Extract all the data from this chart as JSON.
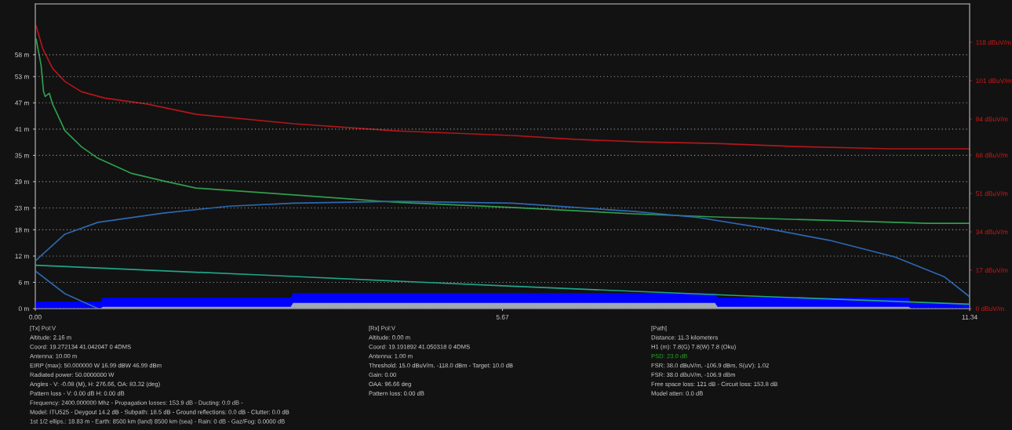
{
  "chart_data": [
    {
      "type": "line",
      "grid": "y",
      "line_style": "solid",
      "xlim": [
        0,
        11.34
      ],
      "xticks": [
        {
          "value": 0,
          "label": "0.00"
        },
        {
          "value": 5.67,
          "label": "5.67"
        },
        {
          "value": 11.34,
          "label": "11.34"
        }
      ],
      "ylim": [
        0,
        69.6
      ],
      "yticks": [
        {
          "value": 0,
          "label": "0 m"
        },
        {
          "value": 6,
          "label": "6 m"
        },
        {
          "value": 12,
          "label": "12 m"
        },
        {
          "value": 18,
          "label": "18 m"
        },
        {
          "value": 23,
          "label": "23 m"
        },
        {
          "value": 29,
          "label": "29 m"
        },
        {
          "value": 35,
          "label": "35 m"
        },
        {
          "value": 41,
          "label": "41 m"
        },
        {
          "value": 47,
          "label": "47 m"
        },
        {
          "value": 53,
          "label": "53 m"
        },
        {
          "value": 58,
          "label": "58 m"
        }
      ],
      "y2lim": [
        0,
        135
      ],
      "y2ticks": [
        {
          "value": 0,
          "label": "0 dBuV/m"
        },
        {
          "value": 17,
          "label": "17 dBuV/m"
        },
        {
          "value": 34,
          "label": "34 dBuV/m"
        },
        {
          "value": 51,
          "label": "51 dBuV/m"
        },
        {
          "value": 68,
          "label": "68 dBuV/m"
        },
        {
          "value": 84,
          "label": "84 dBuV/m"
        },
        {
          "value": 101,
          "label": "101 dBuV/m"
        },
        {
          "value": 118,
          "label": "118 dBuV/m"
        }
      ],
      "series": [
        {
          "type": "area",
          "color": "#0000ff",
          "x": [
            0,
            0.79,
            0.82,
            3.1,
            3.13,
            8.25,
            8.28,
            10.6,
            10.63,
            11.34
          ],
          "values": [
            1.6,
            1.6,
            2.5,
            2.5,
            3.6,
            3.6,
            2.5,
            2.5,
            1.2,
            1.2
          ]
        },
        {
          "type": "area",
          "color": "#9ea9b5",
          "x": [
            0,
            0.79,
            0.82,
            3.1,
            3.13,
            8.25,
            8.28,
            10.6,
            10.63,
            11.34
          ],
          "values": [
            0,
            0,
            0.4,
            0.4,
            1.3,
            1.3,
            0.4,
            0.4,
            0,
            0
          ]
        },
        {
          "type": "line",
          "color": "#1fa58a",
          "x": [
            0,
            2.83,
            5.67,
            8.5,
            11.34
          ],
          "values": [
            9.9,
            7.6,
            5.2,
            3.0,
            1.0
          ]
        },
        {
          "type": "line",
          "color": "#2d68b0",
          "x": [
            0,
            0.36,
            0.76,
            1.55,
            2.35,
            3.14,
            4.34,
            5.79,
            7.26,
            8.05,
            8.84,
            9.64,
            10.43,
            11.03,
            11.34
          ],
          "values": [
            10.9,
            17.0,
            19.7,
            21.8,
            23.4,
            24.1,
            24.5,
            24.1,
            22.2,
            20.8,
            18.4,
            15.6,
            11.8,
            7.3,
            2.7
          ]
        },
        {
          "type": "line",
          "color": "#2d68b0",
          "x": [
            0,
            0.36,
            0.76
          ],
          "values": [
            8.6,
            3.4,
            0
          ]
        },
        {
          "type": "line",
          "axis": "y2",
          "color": "#2e9e4e",
          "x": [
            0.01,
            0.07,
            0.1,
            0.12,
            0.17,
            0.21,
            0.36,
            0.56,
            0.76,
            1.16,
            1.55,
            1.95,
            2.74,
            3.54,
            4.34,
            5.79,
            7.26,
            8.25,
            9.8,
            10.83,
            11.34
          ],
          "values": [
            119.4,
            107.9,
            96.1,
            94.0,
            95.4,
            90.6,
            78.8,
            71.7,
            66.6,
            60.0,
            56.6,
            53.4,
            51.4,
            49.3,
            47.2,
            44.8,
            42.0,
            40.6,
            38.9,
            37.8,
            37.8
          ]
        },
        {
          "type": "line",
          "axis": "y2",
          "color": "#b3161b",
          "x": [
            0.01,
            0.09,
            0.21,
            0.36,
            0.56,
            0.84,
            1.36,
            1.95,
            3.14,
            4.34,
            5.79,
            6.55,
            7.34,
            8.25,
            9.24,
            10.4,
            11.34
          ],
          "values": [
            125.3,
            115.2,
            106.4,
            100.6,
            96.1,
            93.3,
            90.6,
            86.1,
            81.9,
            78.8,
            76.7,
            75.0,
            73.9,
            73.2,
            71.8,
            70.8,
            70.8
          ]
        }
      ]
    },
    {
      "type": "other",
      "annotations": [
        "[Tx] Pol:V",
        "Altitude: 2.16 m",
        "Coord: 19.272134 41.042047 0 4DMS",
        "Antenna: 10.00 m",
        "EIRP (max): 50.000000 W 16.99 dBW 46.99 dBm",
        "Radiated power: 50.0000000 W",
        "Angles - V: -0.08 (M), H: 276.66, OA: 83.32 (deg)",
        "Pattern loss - V: 0.00 dB H: 0.00 dB",
        "Frequency: 2400.000000 Mhz - Propagation losses: 153.9 dB - Ducting: 0.0 dB -",
        "Model: ITU525 - Deygout 14.2 dB - Subpath: 18.5 dB - Ground reflections: 0.0 dB - Clutter: 0.0 dB",
        "1st 1/2 ellips.: 18.83 m - Earth: 8500 km (land) 8500 km (sea) - Rain: 0 dB - Gaz/Fog: 0.0000 dB"
      ]
    },
    {
      "type": "other",
      "annotations": [
        "[Rx] Pol:V",
        "Altitude: 0.00 m",
        "Coord: 19.191892 41.050318 0 4DMS",
        "Antenna: 1.00 m",
        "Threshold: 15.0 dBuV/m, -118.0 dBm - Target: 10.0 dB",
        "Gain: 0.00",
        "OAA: 96.66 deg",
        "Pattern loss: 0.00 dB"
      ]
    },
    {
      "type": "other",
      "annotations": [
        "[Path]",
        "Distance: 11.3 kilometers",
        "H1 (m): 7.8(G) 7.8(W) 7.8 (Oku)",
        "PSD: 23.0 dB",
        "FSR: 38.0 dBuV/m, -106.9 dBm, S(uV): 1.02",
        "FSR: 38.0 dBuV/m, -106.9 dBm",
        "Free space loss: 121 dB - Circuit loss: 153.8 dB",
        "Model atten: 0.0 dB"
      ],
      "colors": [
        "#cfcfcf",
        "#cfcfcf",
        "#cfcfcf",
        "#22b022",
        "#cfcfcf",
        "#cfcfcf",
        "#cfcfcf",
        "#cfcfcf"
      ]
    }
  ]
}
